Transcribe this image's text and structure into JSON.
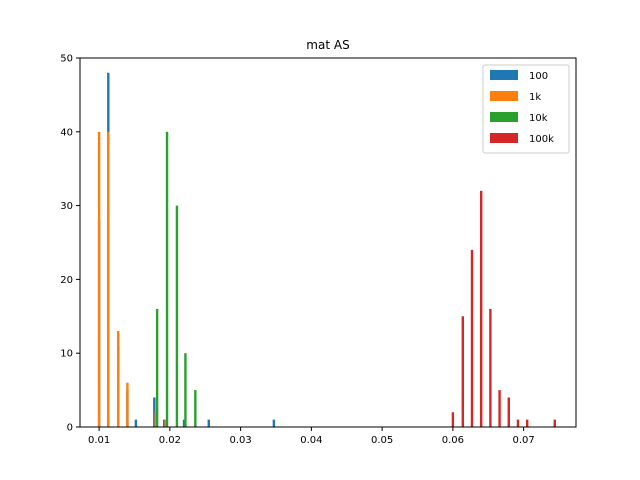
{
  "chart_data": {
    "type": "bar",
    "title": "mat AS",
    "xlabel": "",
    "ylabel": "",
    "xlim": [
      0.0073,
      0.0774
    ],
    "ylim": [
      0,
      50
    ],
    "xticks": [
      0.01,
      0.02,
      0.03,
      0.04,
      0.05,
      0.06,
      0.07
    ],
    "xtick_labels": [
      "0.01",
      "0.02",
      "0.03",
      "0.04",
      "0.05",
      "0.06",
      "0.07"
    ],
    "yticks": [
      0,
      10,
      20,
      30,
      40,
      50
    ],
    "ytick_labels": [
      "0",
      "10",
      "20",
      "30",
      "40",
      "50"
    ],
    "grid": false,
    "legend": "top-right",
    "bar_width": 0.00034,
    "series": [
      {
        "name": "100",
        "color": "#1f77b4",
        "points": [
          {
            "x": 0.01,
            "y": 28
          },
          {
            "x": 0.0113,
            "y": 48
          },
          {
            "x": 0.0127,
            "y": 11
          },
          {
            "x": 0.014,
            "y": 5
          },
          {
            "x": 0.0152,
            "y": 1
          },
          {
            "x": 0.0178,
            "y": 4
          },
          {
            "x": 0.0192,
            "y": 1
          },
          {
            "x": 0.022,
            "y": 1
          },
          {
            "x": 0.0255,
            "y": 1
          },
          {
            "x": 0.0347,
            "y": 1
          }
        ]
      },
      {
        "name": "1k",
        "color": "#ff7f0e",
        "points": [
          {
            "x": 0.01,
            "y": 40
          },
          {
            "x": 0.0113,
            "y": 40
          },
          {
            "x": 0.0127,
            "y": 13
          },
          {
            "x": 0.014,
            "y": 6
          },
          {
            "x": 0.018,
            "y": 2
          },
          {
            "x": 0.0194,
            "y": 1
          }
        ]
      },
      {
        "name": "10k",
        "color": "#2ca02c",
        "points": [
          {
            "x": 0.0182,
            "y": 16
          },
          {
            "x": 0.0196,
            "y": 40
          },
          {
            "x": 0.021,
            "y": 30
          },
          {
            "x": 0.0222,
            "y": 10
          },
          {
            "x": 0.0236,
            "y": 5
          }
        ]
      },
      {
        "name": "100k",
        "color": "#d62728",
        "points": [
          {
            "x": 0.06,
            "y": 2
          },
          {
            "x": 0.0614,
            "y": 15
          },
          {
            "x": 0.0627,
            "y": 24
          },
          {
            "x": 0.064,
            "y": 32
          },
          {
            "x": 0.0653,
            "y": 16
          },
          {
            "x": 0.0666,
            "y": 5
          },
          {
            "x": 0.0679,
            "y": 4
          },
          {
            "x": 0.0692,
            "y": 1
          },
          {
            "x": 0.0705,
            "y": 1
          },
          {
            "x": 0.0744,
            "y": 1
          }
        ]
      }
    ]
  }
}
